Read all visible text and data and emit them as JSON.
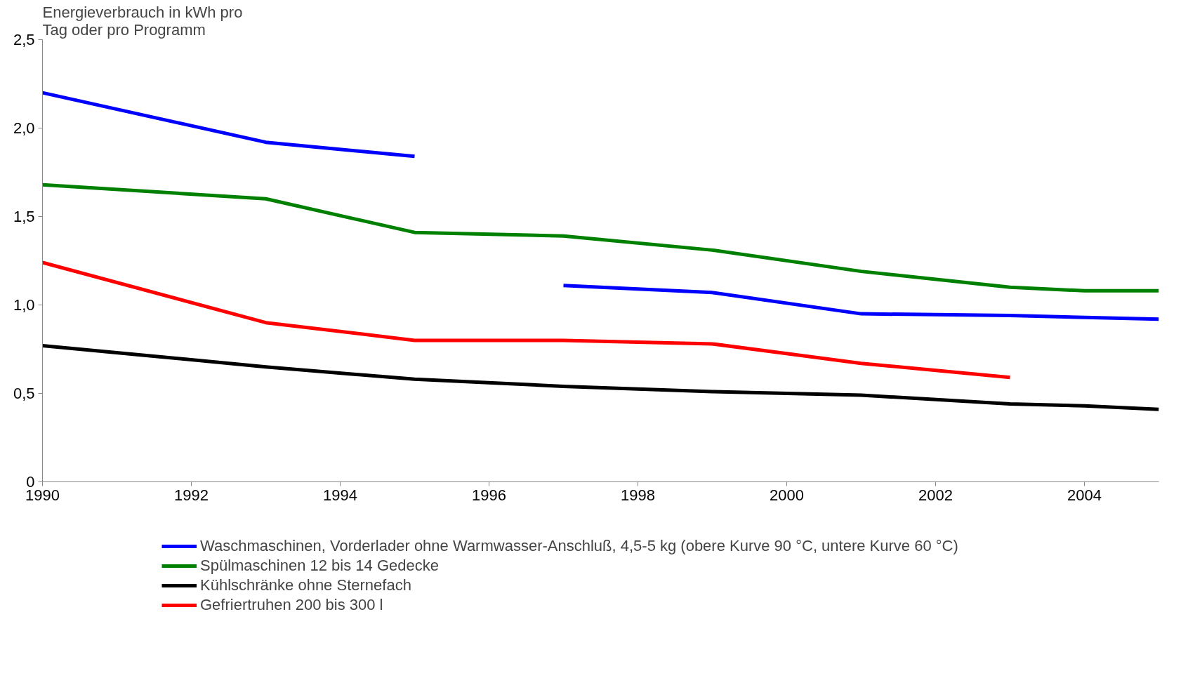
{
  "chart_data": {
    "type": "line",
    "ylabel": "Energieverbrauch in kWh pro Tag oder pro Programm",
    "xlim": [
      1990,
      2005
    ],
    "xticks": [
      1990,
      1992,
      1994,
      1996,
      1998,
      2000,
      2002,
      2004
    ],
    "ylim": [
      0,
      2.5
    ],
    "yticks": [
      {
        "value": 0,
        "label": "0"
      },
      {
        "value": 0.5,
        "label": "0,5"
      },
      {
        "value": 1.0,
        "label": "1,0"
      },
      {
        "value": 1.5,
        "label": "1,5"
      },
      {
        "value": 2.0,
        "label": "2,0"
      },
      {
        "value": 2.5,
        "label": "2,5"
      }
    ],
    "grid": false,
    "legend": "bottom",
    "marker": "none",
    "line_style": "solid",
    "series": [
      {
        "name": "Waschmaschinen, Vorderlader ohne Warmwasser-Anschluß, 4,5-5 kg (obere Kurve 90 °C, untere Kurve 60 °C)",
        "color": "#0000ff",
        "x": [
          1990,
          1993,
          1995
        ],
        "values": [
          2.2,
          1.92,
          1.84
        ]
      },
      {
        "color": "#0000ff",
        "x": [
          1997,
          1999,
          2001,
          2003,
          2005
        ],
        "values": [
          1.11,
          1.07,
          0.95,
          0.94,
          0.92
        ]
      },
      {
        "name": "Spülmaschinen 12 bis 14 Gedecke",
        "color": "#008000",
        "x": [
          1990,
          1993,
          1995,
          1997,
          1999,
          2001,
          2003,
          2004,
          2005
        ],
        "values": [
          1.68,
          1.6,
          1.41,
          1.39,
          1.31,
          1.19,
          1.1,
          1.08,
          1.08
        ]
      },
      {
        "name": "Kühlschränke ohne Sternefach",
        "color": "#000000",
        "x": [
          1990,
          1993,
          1995,
          1997,
          1999,
          2001,
          2003,
          2004,
          2005
        ],
        "values": [
          0.77,
          0.65,
          0.58,
          0.54,
          0.51,
          0.49,
          0.44,
          0.43,
          0.41
        ]
      },
      {
        "name": "Gefriertruhen 200 bis 300 l",
        "color": "#ff0000",
        "x": [
          1990,
          1993,
          1995,
          1997,
          1999,
          2001,
          2003
        ],
        "values": [
          1.24,
          0.9,
          0.8,
          0.8,
          0.78,
          0.67,
          0.59
        ]
      }
    ]
  }
}
